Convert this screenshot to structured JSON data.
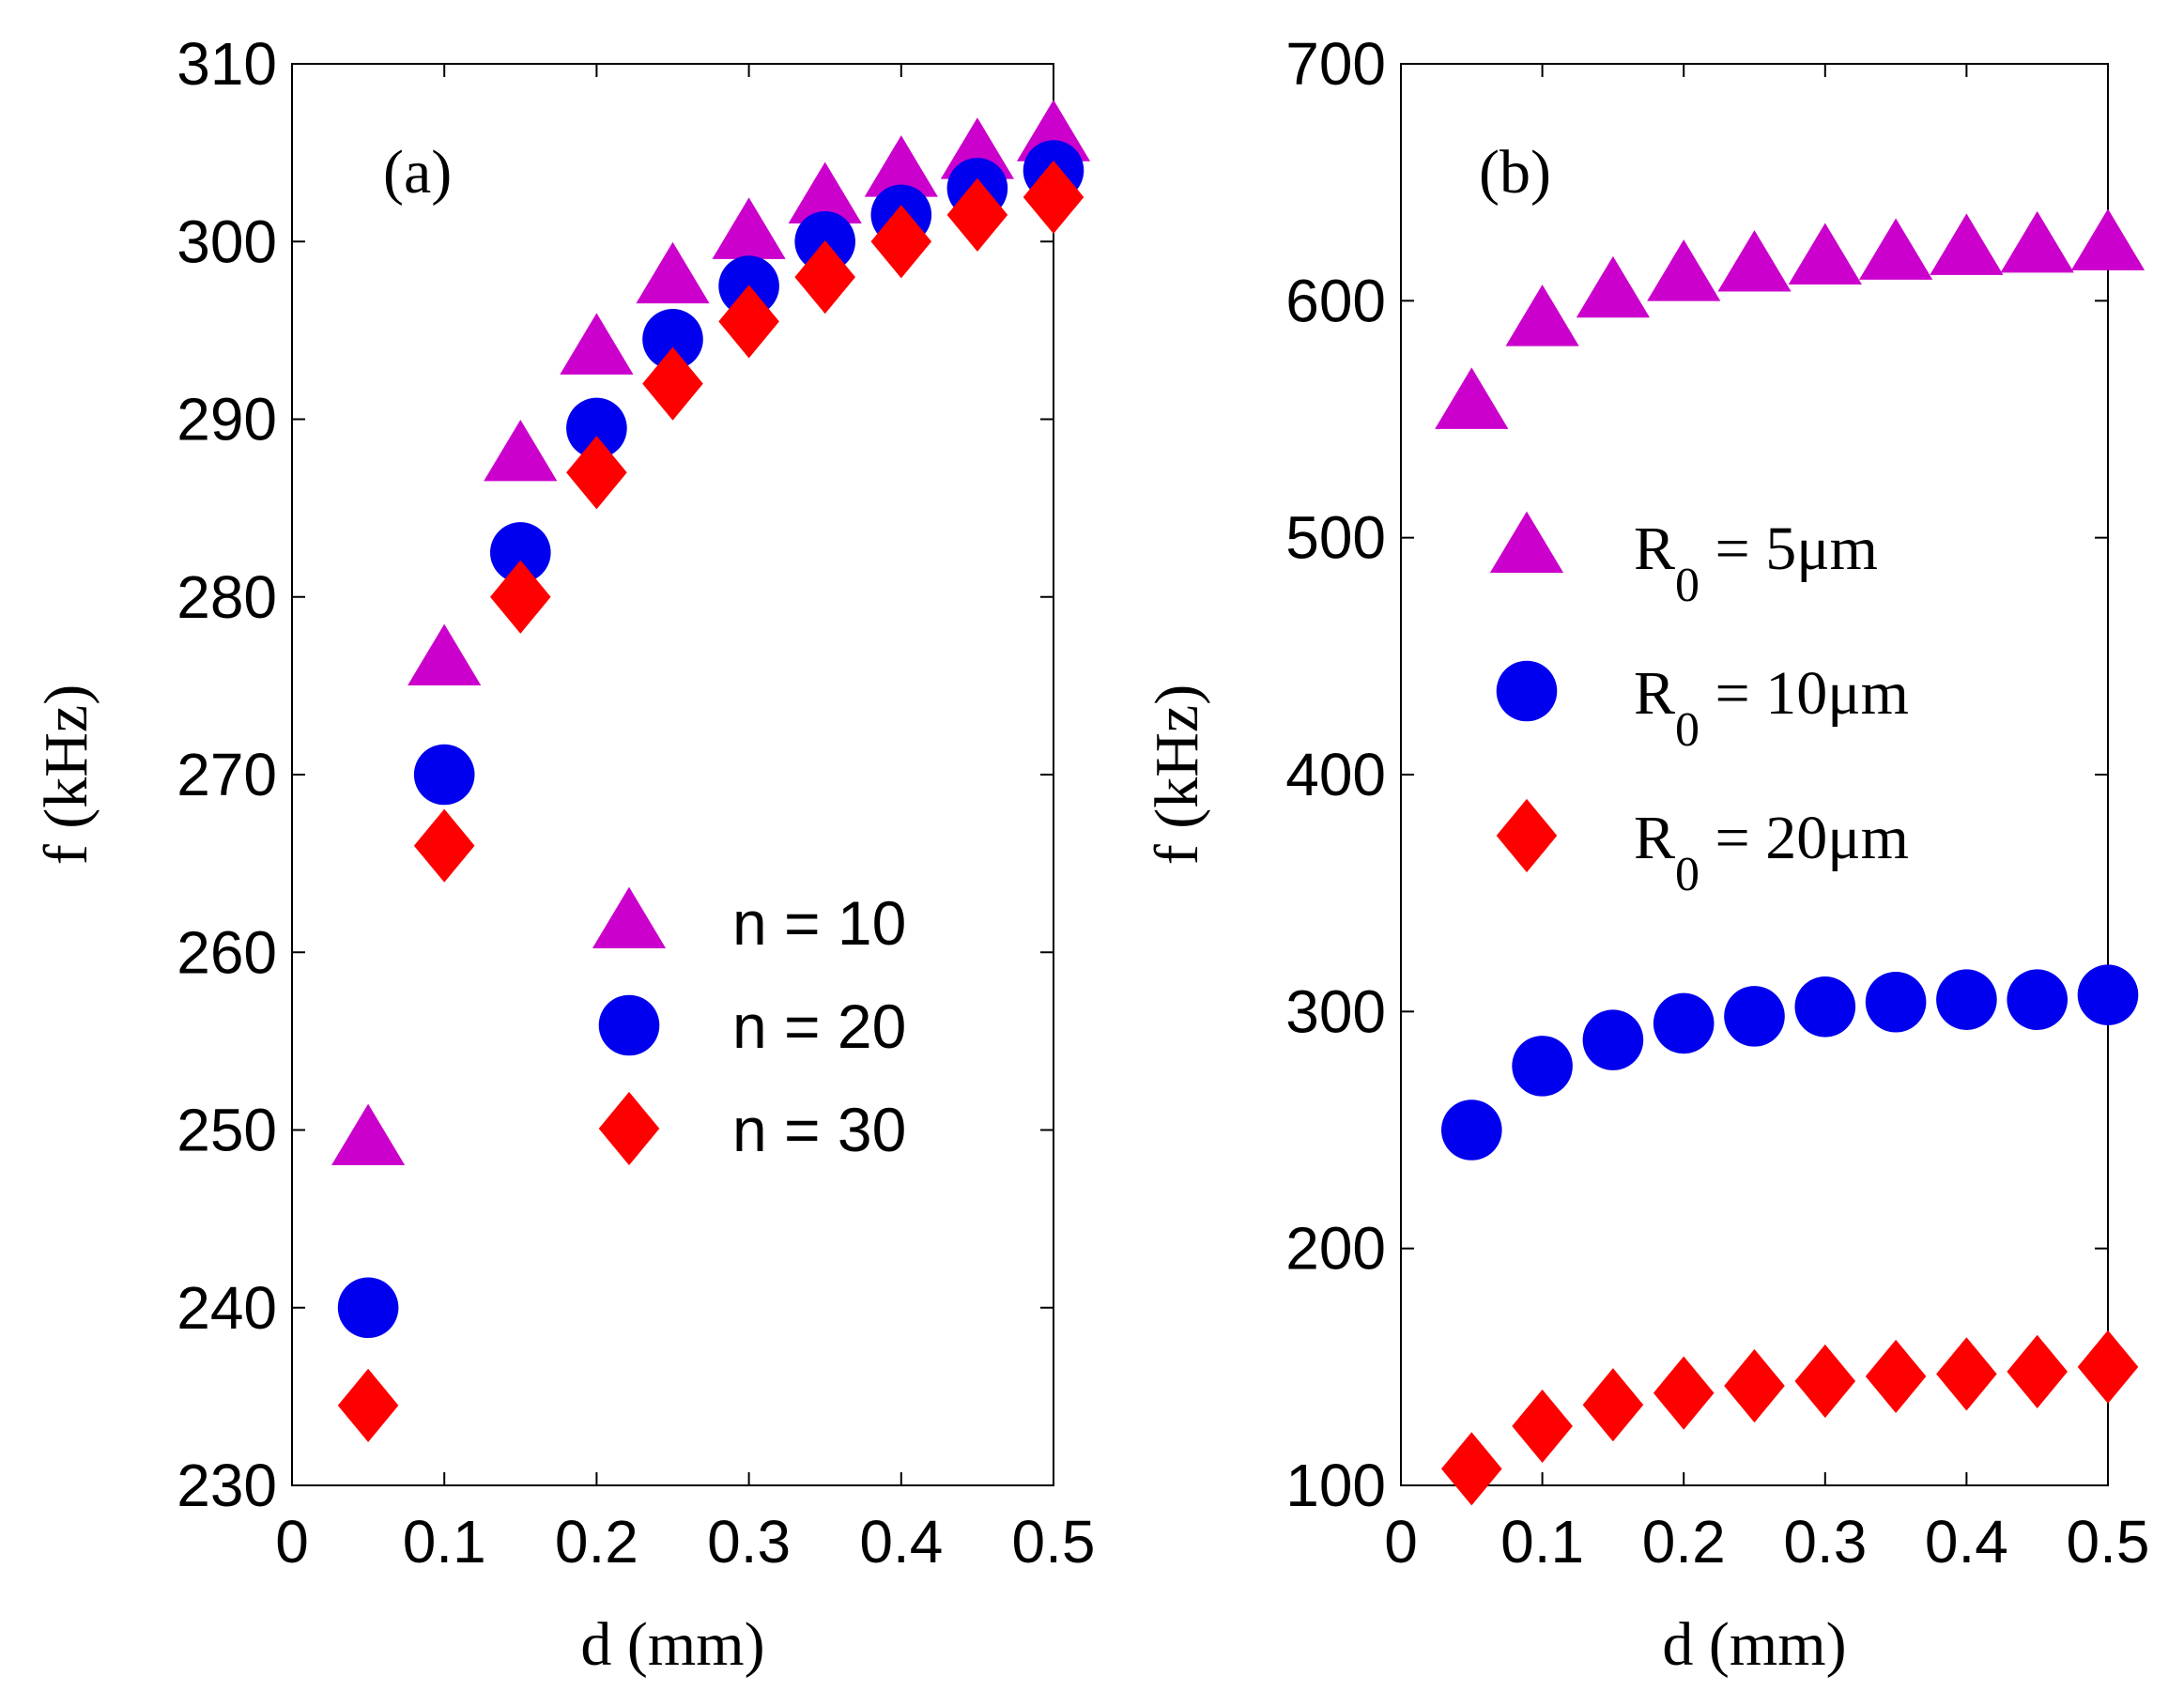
{
  "chart_data": [
    {
      "type": "scatter",
      "panel_label": "(a)",
      "xlabel": "d  (mm)",
      "ylabel": "f  (kHz)",
      "xlim": [
        0,
        0.5
      ],
      "ylim": [
        230,
        310
      ],
      "xticks": [
        0,
        0.1,
        0.2,
        0.3,
        0.4,
        0.5
      ],
      "xtick_labels": [
        "0",
        "0.1",
        "0.2",
        "0.3",
        "0.4",
        "0.5"
      ],
      "yticks": [
        230,
        240,
        250,
        260,
        270,
        280,
        290,
        300,
        310
      ],
      "ytick_labels": [
        "230",
        "240",
        "250",
        "260",
        "270",
        "280",
        "290",
        "300",
        "310"
      ],
      "x": [
        0.05,
        0.1,
        0.15,
        0.2,
        0.25,
        0.3,
        0.35,
        0.4,
        0.45,
        0.5
      ],
      "legend_position": "lower-right",
      "series": [
        {
          "name": "n = 10",
          "marker": "triangle",
          "color": "#cc00cc",
          "values": [
            249.5,
            276.5,
            288,
            294,
            298,
            300.5,
            302.5,
            304,
            305,
            306
          ]
        },
        {
          "name": "n = 20",
          "marker": "circle",
          "color": "#0000ee",
          "values": [
            240,
            270,
            282.5,
            289.5,
            294.5,
            297.5,
            300,
            301.5,
            303,
            304
          ]
        },
        {
          "name": "n = 30",
          "marker": "diamond",
          "color": "#ff0000",
          "values": [
            234.5,
            266,
            280,
            287,
            292,
            295.5,
            298,
            300,
            301.5,
            302.5
          ]
        }
      ]
    },
    {
      "type": "scatter",
      "panel_label": "(b)",
      "xlabel": "d  (mm)",
      "ylabel": "f  (kHz)",
      "xlim": [
        0,
        0.5
      ],
      "ylim": [
        100,
        700
      ],
      "xticks": [
        0,
        0.1,
        0.2,
        0.3,
        0.4,
        0.5
      ],
      "xtick_labels": [
        "0",
        "0.1",
        "0.2",
        "0.3",
        "0.4",
        "0.5"
      ],
      "yticks": [
        100,
        200,
        300,
        400,
        500,
        600,
        700
      ],
      "ytick_labels": [
        "100",
        "200",
        "300",
        "400",
        "500",
        "600",
        "700"
      ],
      "x": [
        0.05,
        0.1,
        0.15,
        0.2,
        0.25,
        0.3,
        0.35,
        0.4,
        0.45,
        0.5
      ],
      "legend_position": "center-right",
      "series": [
        {
          "name": "R",
          "subscript": "0",
          "suffix": " = 5μm",
          "marker": "triangle",
          "color": "#cc00cc",
          "values": [
            557,
            592,
            604,
            611,
            615,
            618,
            620,
            622,
            623,
            624
          ]
        },
        {
          "name": "R",
          "subscript": "0",
          "suffix": " = 10μm",
          "marker": "circle",
          "color": "#0000ee",
          "values": [
            250,
            277,
            288,
            295,
            298,
            302,
            304,
            305,
            305,
            307
          ]
        },
        {
          "name": "R",
          "subscript": "0",
          "suffix": " = 20μm",
          "marker": "diamond",
          "color": "#ff0000",
          "values": [
            107,
            125,
            134,
            139,
            142,
            144,
            146,
            147,
            148,
            150
          ]
        }
      ]
    }
  ]
}
